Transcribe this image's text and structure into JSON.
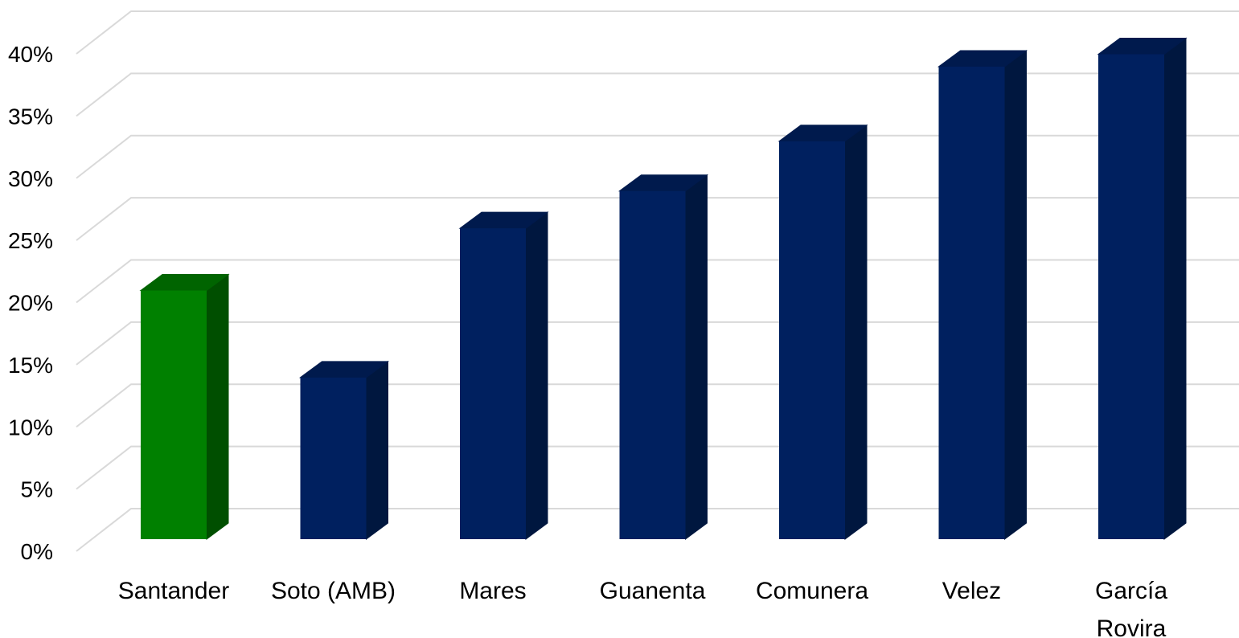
{
  "chart_data": {
    "type": "bar",
    "title": "",
    "xlabel": "",
    "ylabel": "",
    "categories": [
      "Santander",
      "Soto (AMB)",
      "Mares",
      "Guanenta",
      "Comunera",
      "Velez",
      "García Rovira"
    ],
    "category_lines": [
      [
        "Santander"
      ],
      [
        "Soto (AMB)"
      ],
      [
        "Mares"
      ],
      [
        "Guanenta"
      ],
      [
        "Comunera"
      ],
      [
        "Velez"
      ],
      [
        "García",
        "Rovira"
      ]
    ],
    "values": [
      20,
      13,
      25,
      28,
      32,
      38,
      39
    ],
    "ylim": [
      0,
      40
    ],
    "ytick_values": [
      0,
      5,
      10,
      15,
      20,
      25,
      30,
      35,
      40
    ],
    "ytick_labels": [
      "0%",
      "5%",
      "10%",
      "15%",
      "20%",
      "25%",
      "30%",
      "35%",
      "40%"
    ],
    "grid": true,
    "legend": "none",
    "three_d": true,
    "colors": {
      "highlight": "#008000",
      "highlight_top": "#006400",
      "highlight_side": "#004f00",
      "default": "#00205f",
      "default_top": "#001a4d",
      "default_side": "#00173f",
      "grid": "#d9d9d9"
    },
    "highlight_index": 0
  }
}
